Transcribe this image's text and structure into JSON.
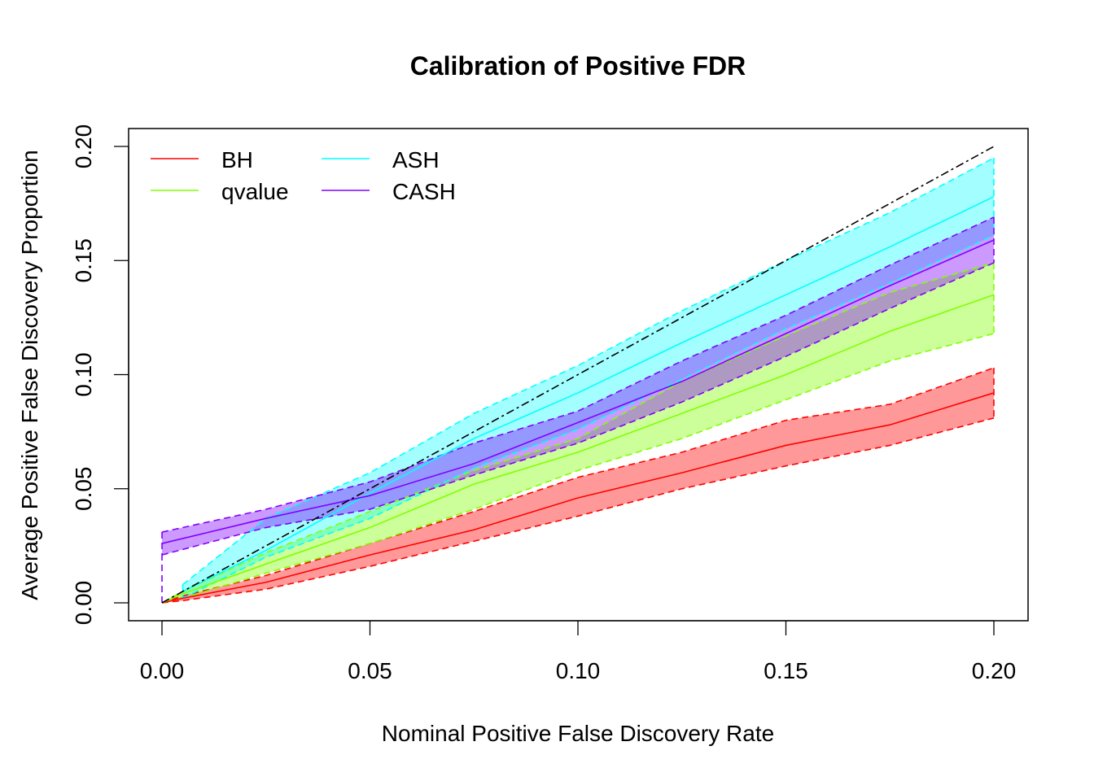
{
  "chart_data": {
    "type": "line",
    "title": "Calibration of Positive FDR",
    "xlabel": "Nominal Positive False Discovery Rate",
    "ylabel": "Average Positive False Discovery Proportion",
    "xlim": [
      0.0,
      0.2
    ],
    "ylim": [
      0.0,
      0.2
    ],
    "xticks": [
      0.0,
      0.05,
      0.1,
      0.15,
      0.2
    ],
    "xtick_labels": [
      "0.00",
      "0.05",
      "0.10",
      "0.15",
      "0.20"
    ],
    "yticks": [
      0.0,
      0.05,
      0.1,
      0.15,
      0.2
    ],
    "ytick_labels": [
      "0.00",
      "0.05",
      "0.10",
      "0.15",
      "0.20"
    ],
    "grid": false,
    "legend": {
      "placement": "top-left",
      "columns": 2,
      "entries": [
        "BH",
        "qvalue",
        "ASH",
        "CASH"
      ]
    },
    "reference_line": {
      "name": "y = x",
      "x": [
        0.0,
        0.2
      ],
      "y": [
        0.0,
        0.2
      ],
      "style": "dotdash",
      "color": "#000000"
    },
    "series": [
      {
        "name": "BH",
        "color": "#ff0000",
        "fill": "#ff000066",
        "x": [
          0.0,
          0.005,
          0.025,
          0.05,
          0.075,
          0.1,
          0.125,
          0.15,
          0.175,
          0.2
        ],
        "mean": [
          0.0,
          0.002,
          0.009,
          0.021,
          0.032,
          0.046,
          0.057,
          0.069,
          0.078,
          0.092
        ],
        "upper": [
          0.0,
          0.003,
          0.012,
          0.026,
          0.04,
          0.055,
          0.066,
          0.08,
          0.087,
          0.103
        ],
        "lower": [
          0.0,
          0.001,
          0.006,
          0.016,
          0.027,
          0.038,
          0.05,
          0.06,
          0.069,
          0.081
        ]
      },
      {
        "name": "qvalue",
        "color": "#80ff00",
        "fill": "#80ff0066",
        "x": [
          0.0,
          0.005,
          0.025,
          0.05,
          0.075,
          0.1,
          0.125,
          0.15,
          0.175,
          0.2
        ],
        "mean": [
          0.0,
          0.004,
          0.017,
          0.033,
          0.052,
          0.066,
          0.083,
          0.1,
          0.119,
          0.135
        ],
        "upper": [
          0.0,
          0.005,
          0.022,
          0.04,
          0.058,
          0.072,
          0.097,
          0.117,
          0.136,
          0.149
        ],
        "lower": [
          0.0,
          0.002,
          0.013,
          0.026,
          0.041,
          0.058,
          0.072,
          0.089,
          0.106,
          0.118
        ]
      },
      {
        "name": "ASH",
        "color": "#00ffff",
        "fill": "#00ffff5c",
        "x": [
          0.005,
          0.025,
          0.05,
          0.075,
          0.1,
          0.125,
          0.15,
          0.175,
          0.2
        ],
        "mean": [
          0.005,
          0.023,
          0.048,
          0.072,
          0.092,
          0.114,
          0.135,
          0.156,
          0.178
        ],
        "upper": [
          0.008,
          0.037,
          0.057,
          0.083,
          0.104,
          0.128,
          0.15,
          0.171,
          0.195
        ],
        "lower": [
          0.002,
          0.02,
          0.037,
          0.059,
          0.076,
          0.098,
          0.12,
          0.14,
          0.161
        ]
      },
      {
        "name": "CASH",
        "color": "#8000ff",
        "fill": "#8000ff66",
        "x": [
          0.0,
          0.025,
          0.05,
          0.075,
          0.1,
          0.125,
          0.15,
          0.175,
          0.2
        ],
        "mean": [
          0.026,
          0.037,
          0.047,
          0.061,
          0.079,
          0.097,
          0.118,
          0.139,
          0.159
        ],
        "upper": [
          0.031,
          0.041,
          0.053,
          0.07,
          0.084,
          0.106,
          0.126,
          0.148,
          0.169
        ],
        "lower": [
          0.021,
          0.033,
          0.041,
          0.056,
          0.07,
          0.088,
          0.108,
          0.129,
          0.149
        ]
      }
    ]
  }
}
